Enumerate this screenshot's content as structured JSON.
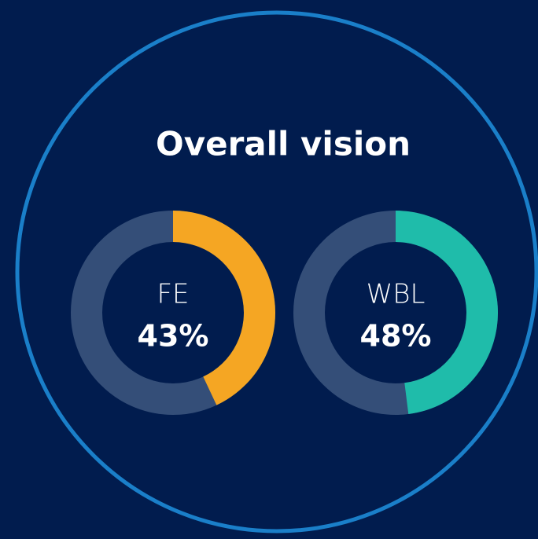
{
  "title": "Overall vision",
  "chart_data": [
    {
      "type": "donut",
      "title": "FE",
      "values": [
        43
      ],
      "value_labels": [
        "43%"
      ],
      "color": "#f5a623",
      "track_color": "#344e78",
      "ylim": [
        0,
        100
      ]
    },
    {
      "type": "donut",
      "title": "WBL",
      "values": [
        48
      ],
      "value_labels": [
        "48%"
      ],
      "color": "#1fbcaa",
      "track_color": "#344e78",
      "ylim": [
        0,
        100
      ]
    }
  ]
}
